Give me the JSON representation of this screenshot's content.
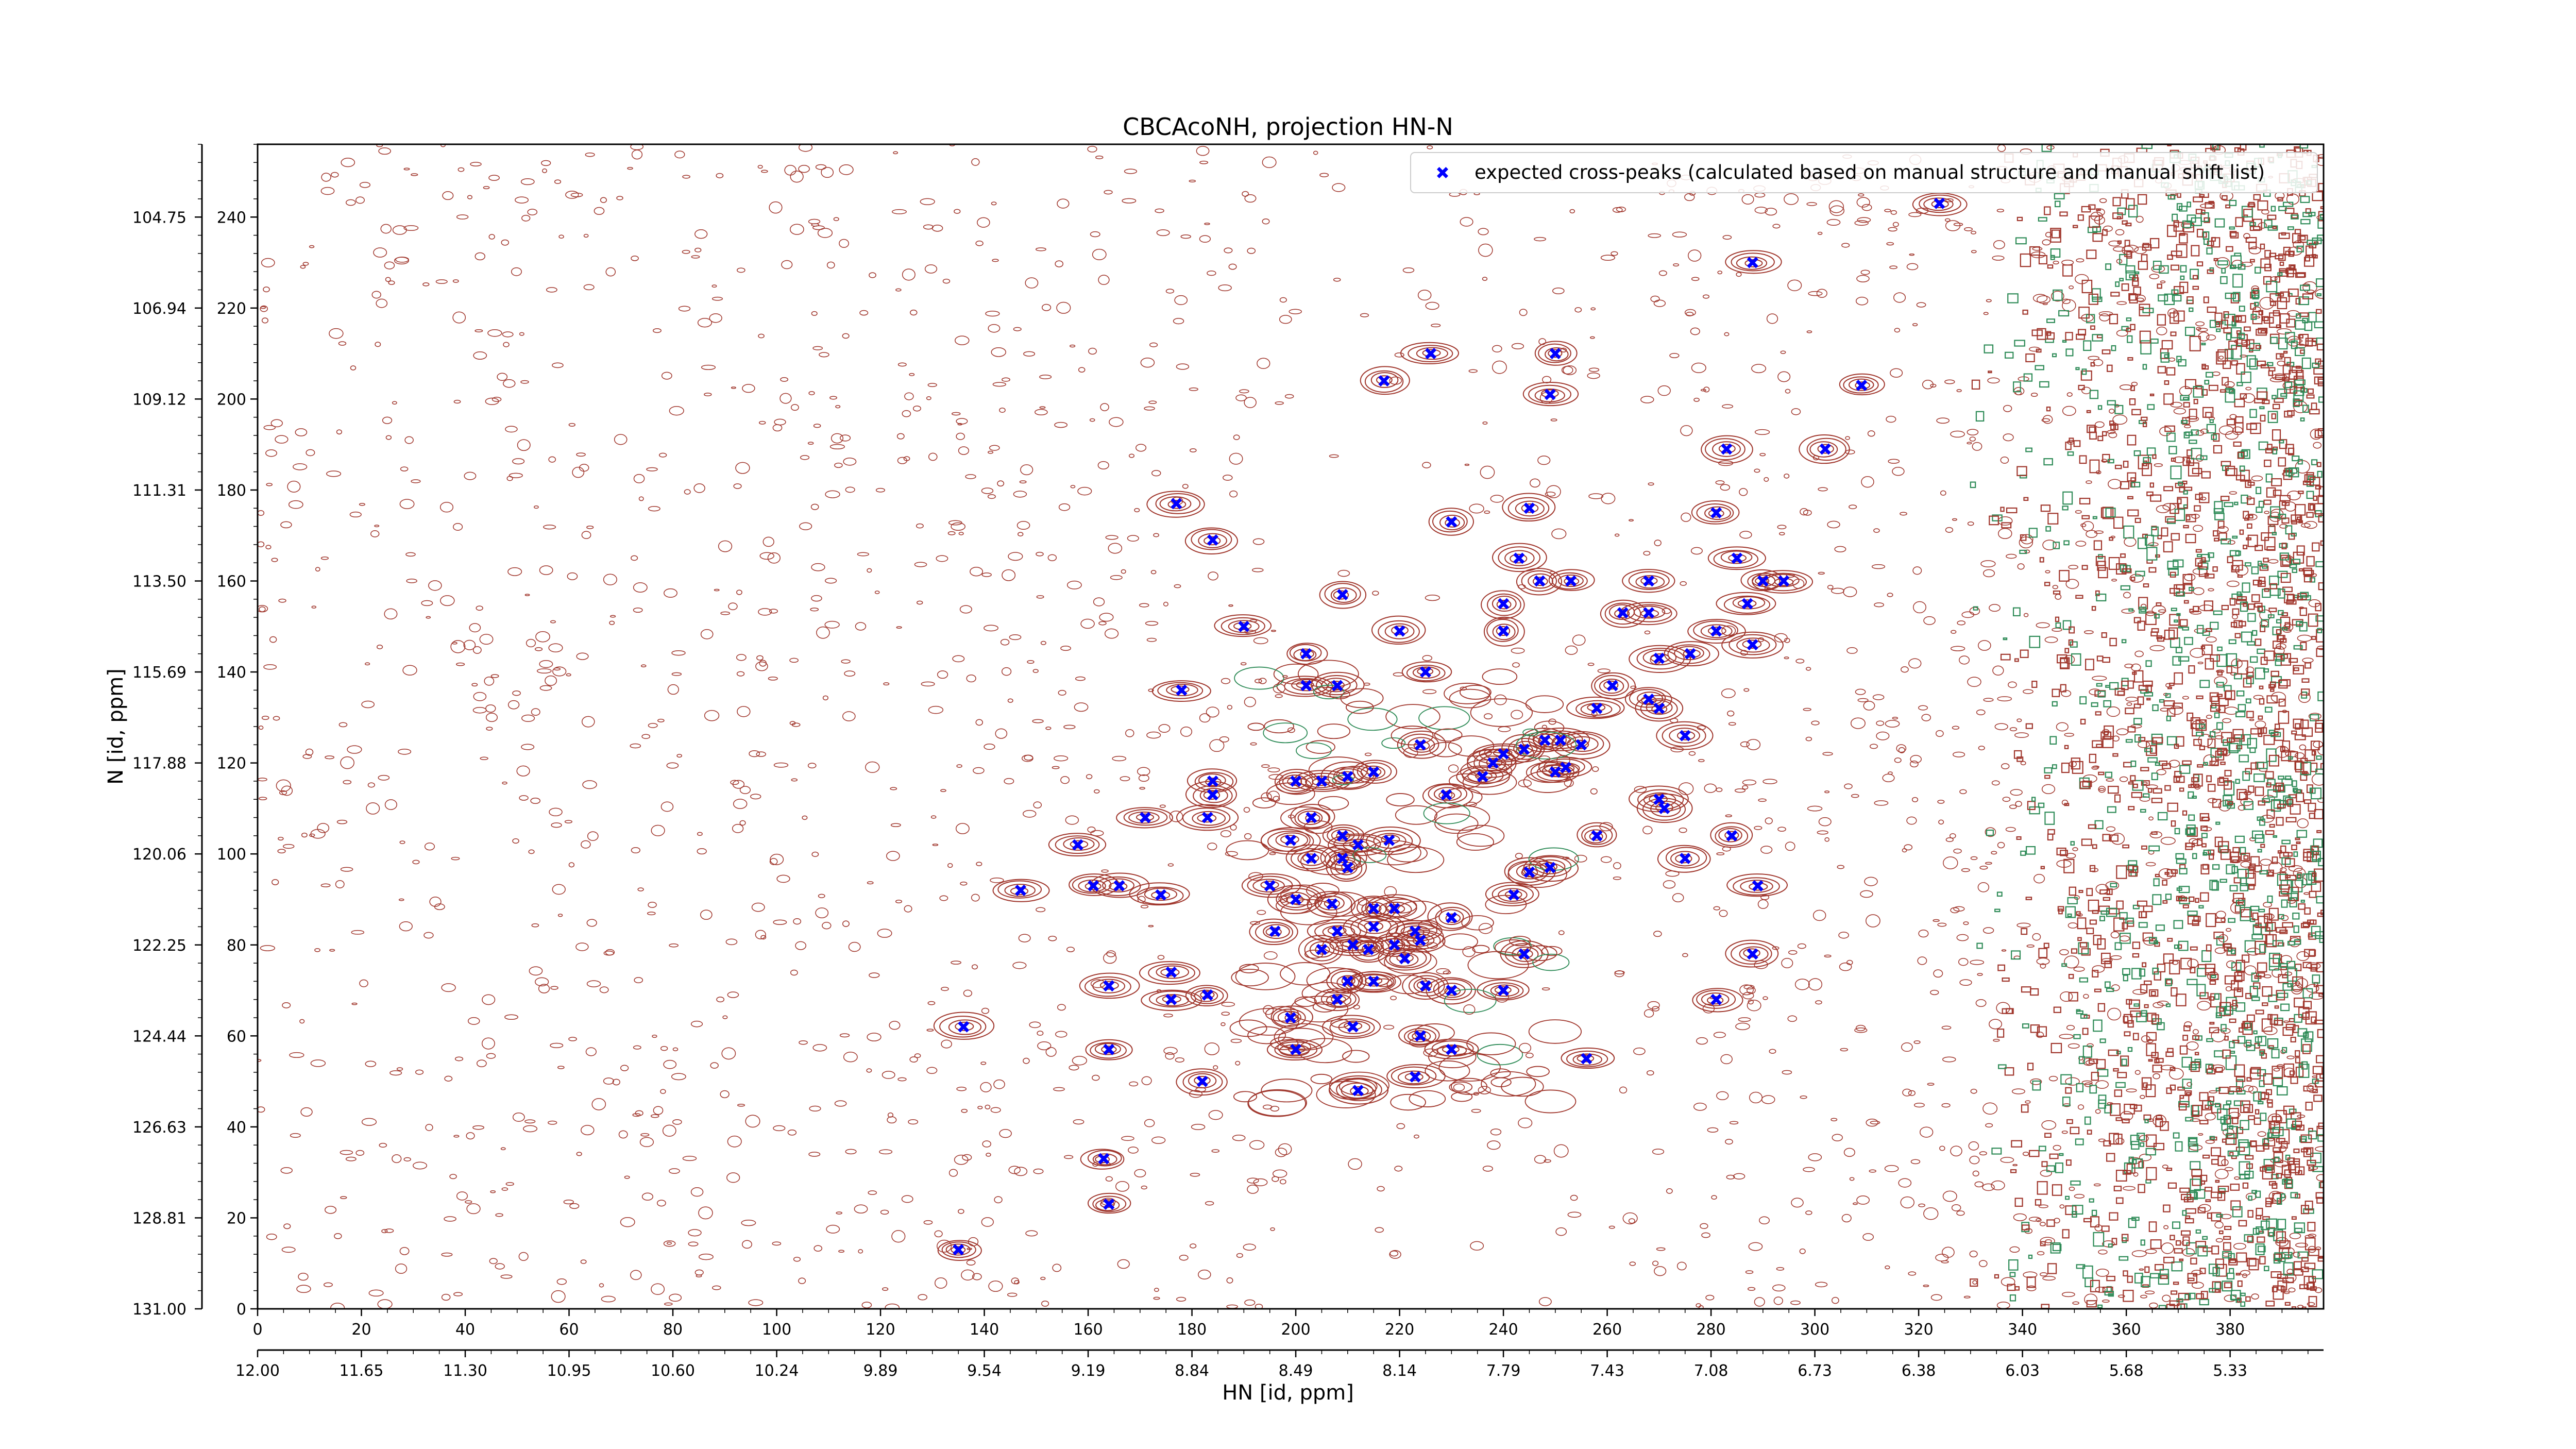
{
  "chart_data": {
    "type": "scatter",
    "title": "CBCAcoNH, projection HN-N",
    "xlabel": "HN [id, ppm]",
    "ylabel": "N [id, ppm]",
    "xlim": [
      0,
      398
    ],
    "ylim": [
      0,
      256
    ],
    "x_ticks": [
      0,
      20,
      40,
      60,
      80,
      100,
      120,
      140,
      160,
      180,
      200,
      220,
      240,
      260,
      280,
      300,
      320,
      340,
      360,
      380
    ],
    "y_ticks": [
      0,
      20,
      40,
      60,
      80,
      100,
      120,
      140,
      160,
      180,
      200,
      220,
      240
    ],
    "x_ppm_ticks": [
      "12.00",
      "11.65",
      "11.30",
      "10.95",
      "10.60",
      "10.24",
      "9.89",
      "9.54",
      "9.19",
      "8.84",
      "8.49",
      "8.14",
      "7.79",
      "7.43",
      "7.08",
      "6.73",
      "6.38",
      "6.03",
      "5.68",
      "5.33"
    ],
    "y_ppm_ticks": [
      "131.00",
      "128.81",
      "126.63",
      "124.44",
      "122.25",
      "120.06",
      "117.88",
      "115.69",
      "113.50",
      "111.31",
      "109.12",
      "106.94",
      "104.75"
    ],
    "grid": false,
    "legend_position": "top-right",
    "contour_colors": {
      "positive": "#a0362c",
      "negative": "#2e8b57"
    },
    "series": [
      {
        "name": "expected cross-peaks (calculated based on manual structure and manual shift list)",
        "color": "#0000ff",
        "marker": "filled-x",
        "points": [
          [
            324,
            243
          ],
          [
            288,
            230
          ],
          [
            250,
            210
          ],
          [
            226,
            210
          ],
          [
            217,
            204
          ],
          [
            249,
            201
          ],
          [
            309,
            203
          ],
          [
            283,
            189
          ],
          [
            302,
            189
          ],
          [
            177,
            177
          ],
          [
            184,
            169
          ],
          [
            230,
            173
          ],
          [
            245,
            176
          ],
          [
            243,
            165
          ],
          [
            281,
            175
          ],
          [
            285,
            165
          ],
          [
            290,
            160
          ],
          [
            294,
            160
          ],
          [
            247,
            160
          ],
          [
            253,
            160
          ],
          [
            268,
            160
          ],
          [
            287,
            155
          ],
          [
            240,
            155
          ],
          [
            209,
            157
          ],
          [
            263,
            153
          ],
          [
            268,
            153
          ],
          [
            190,
            150
          ],
          [
            220,
            149
          ],
          [
            281,
            149
          ],
          [
            240,
            149
          ],
          [
            288,
            146
          ],
          [
            202,
            144
          ],
          [
            270,
            143
          ],
          [
            276,
            144
          ],
          [
            225,
            140
          ],
          [
            202,
            137
          ],
          [
            208,
            137
          ],
          [
            178,
            136
          ],
          [
            261,
            137
          ],
          [
            268,
            134
          ],
          [
            258,
            132
          ],
          [
            270,
            132
          ],
          [
            275,
            126
          ],
          [
            224,
            124
          ],
          [
            240,
            122
          ],
          [
            244,
            123
          ],
          [
            248,
            125
          ],
          [
            251,
            125
          ],
          [
            255,
            124
          ],
          [
            250,
            118
          ],
          [
            252,
            119
          ],
          [
            238,
            120
          ],
          [
            236,
            117
          ],
          [
            200,
            116
          ],
          [
            205,
            116
          ],
          [
            210,
            117
          ],
          [
            215,
            118
          ],
          [
            184,
            116
          ],
          [
            184,
            113
          ],
          [
            229,
            113
          ],
          [
            270,
            112
          ],
          [
            271,
            110
          ],
          [
            183,
            108
          ],
          [
            171,
            108
          ],
          [
            203,
            108
          ],
          [
            158,
            102
          ],
          [
            199,
            103
          ],
          [
            209,
            104
          ],
          [
            212,
            102
          ],
          [
            218,
            103
          ],
          [
            258,
            104
          ],
          [
            284,
            104
          ],
          [
            203,
            99
          ],
          [
            209,
            99
          ],
          [
            210,
            97
          ],
          [
            275,
            99
          ],
          [
            245,
            96
          ],
          [
            249,
            97
          ],
          [
            161,
            93
          ],
          [
            166,
            93
          ],
          [
            174,
            91
          ],
          [
            195,
            93
          ],
          [
            200,
            90
          ],
          [
            207,
            89
          ],
          [
            219,
            88
          ],
          [
            215,
            88
          ],
          [
            289,
            93
          ],
          [
            242,
            91
          ],
          [
            147,
            92
          ],
          [
            230,
            86
          ],
          [
            215,
            84
          ],
          [
            223,
            83
          ],
          [
            208,
            83
          ],
          [
            196,
            83
          ],
          [
            211,
            80
          ],
          [
            205,
            79
          ],
          [
            214,
            79
          ],
          [
            219,
            80
          ],
          [
            224,
            81
          ],
          [
            221,
            77
          ],
          [
            244,
            78
          ],
          [
            288,
            78
          ],
          [
            176,
            74
          ],
          [
            164,
            71
          ],
          [
            183,
            69
          ],
          [
            210,
            72
          ],
          [
            215,
            72
          ],
          [
            208,
            68
          ],
          [
            225,
            71
          ],
          [
            230,
            70
          ],
          [
            240,
            70
          ],
          [
            281,
            68
          ],
          [
            176,
            68
          ],
          [
            199,
            64
          ],
          [
            211,
            62
          ],
          [
            224,
            60
          ],
          [
            136,
            62
          ],
          [
            164,
            57
          ],
          [
            200,
            57
          ],
          [
            230,
            57
          ],
          [
            256,
            55
          ],
          [
            182,
            50
          ],
          [
            212,
            48
          ],
          [
            223,
            51
          ],
          [
            163,
            33
          ],
          [
            164,
            23
          ],
          [
            135,
            13
          ]
        ]
      }
    ]
  }
}
